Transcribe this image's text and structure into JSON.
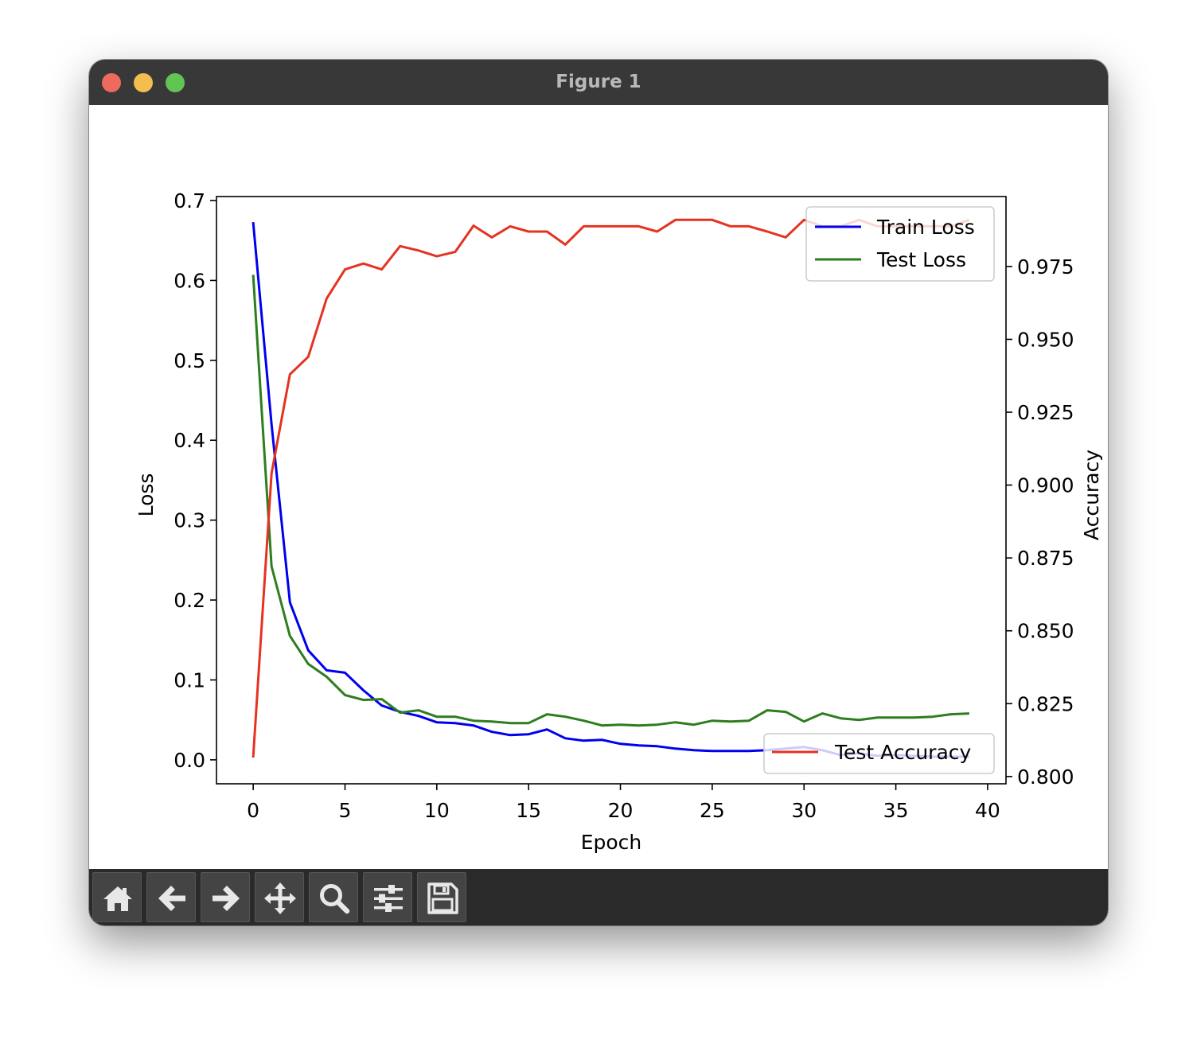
{
  "window": {
    "title": "Figure 1"
  },
  "toolbar": {
    "buttons": [
      {
        "name": "home",
        "icon": "home-icon"
      },
      {
        "name": "back",
        "icon": "arrow-left-icon"
      },
      {
        "name": "forward",
        "icon": "arrow-right-icon"
      },
      {
        "name": "pan",
        "icon": "move-icon"
      },
      {
        "name": "zoom",
        "icon": "magnifier-icon"
      },
      {
        "name": "configure-subplots",
        "icon": "sliders-icon"
      },
      {
        "name": "save",
        "icon": "floppy-disk-icon"
      }
    ]
  },
  "chart_data": {
    "type": "line",
    "title": "",
    "xlabel": "Epoch",
    "ylabel": "Loss",
    "y2label": "Accuracy",
    "xlim": [
      -2,
      41
    ],
    "ylim": [
      -0.03,
      0.705
    ],
    "y2lim": [
      0.7975,
      0.999
    ],
    "xticks": [
      0,
      5,
      10,
      15,
      20,
      25,
      30,
      35,
      40
    ],
    "yticks": [
      0.0,
      0.1,
      0.2,
      0.3,
      0.4,
      0.5,
      0.6,
      0.7
    ],
    "y2ticks": [
      0.8,
      0.825,
      0.85,
      0.875,
      0.9,
      0.925,
      0.95,
      0.975
    ],
    "xtick_labels": [
      "0",
      "5",
      "10",
      "15",
      "20",
      "25",
      "30",
      "35",
      "40"
    ],
    "ytick_labels": [
      "0.0",
      "0.1",
      "0.2",
      "0.3",
      "0.4",
      "0.5",
      "0.6",
      "0.7"
    ],
    "y2tick_labels": [
      "0.800",
      "0.825",
      "0.850",
      "0.875",
      "0.900",
      "0.925",
      "0.950",
      "0.975"
    ],
    "x": [
      0,
      1,
      2,
      3,
      4,
      5,
      6,
      7,
      8,
      9,
      10,
      11,
      12,
      13,
      14,
      15,
      16,
      17,
      18,
      19,
      20,
      21,
      22,
      23,
      24,
      25,
      26,
      27,
      28,
      29,
      30,
      31,
      32,
      33,
      34,
      35,
      36,
      37,
      38,
      39
    ],
    "series": [
      {
        "name": "Train Loss",
        "axis": "left",
        "color": "#0000ee",
        "values": [
          0.673,
          0.42,
          0.197,
          0.137,
          0.112,
          0.109,
          0.087,
          0.068,
          0.06,
          0.055,
          0.047,
          0.046,
          0.043,
          0.035,
          0.031,
          0.032,
          0.038,
          0.027,
          0.024,
          0.025,
          0.02,
          0.018,
          0.017,
          0.014,
          0.012,
          0.011,
          0.011,
          0.011,
          0.012,
          0.014,
          0.016,
          0.012,
          0.006,
          0.008,
          0.005,
          0.006,
          0.005,
          0.004,
          0.004,
          0.004
        ]
      },
      {
        "name": "Test Loss",
        "axis": "left",
        "color": "#2e7d1e",
        "values": [
          0.607,
          0.242,
          0.155,
          0.12,
          0.104,
          0.081,
          0.075,
          0.076,
          0.059,
          0.062,
          0.054,
          0.054,
          0.049,
          0.048,
          0.046,
          0.046,
          0.057,
          0.054,
          0.049,
          0.043,
          0.044,
          0.043,
          0.044,
          0.047,
          0.044,
          0.049,
          0.048,
          0.049,
          0.062,
          0.06,
          0.048,
          0.058,
          0.052,
          0.05,
          0.053,
          0.053,
          0.053,
          0.054,
          0.057,
          0.058
        ]
      },
      {
        "name": "Test Accuracy",
        "axis": "right",
        "color": "#e53320",
        "values": [
          0.8065,
          0.904,
          0.938,
          0.944,
          0.964,
          0.974,
          0.976,
          0.974,
          0.982,
          0.9805,
          0.9785,
          0.98,
          0.989,
          0.985,
          0.9888,
          0.987,
          0.987,
          0.9825,
          0.9888,
          0.9888,
          0.9888,
          0.9888,
          0.987,
          0.991,
          0.991,
          0.991,
          0.9888,
          0.9888,
          0.987,
          0.985,
          0.991,
          0.9888,
          0.9888,
          0.991,
          0.9888,
          0.9888,
          0.9888,
          0.9888,
          0.9888,
          0.991
        ]
      }
    ],
    "legends": [
      {
        "placement": "top-right",
        "entries": [
          "Train Loss",
          "Test Loss"
        ]
      },
      {
        "placement": "bottom-right",
        "entries": [
          "Test Accuracy"
        ]
      }
    ]
  }
}
